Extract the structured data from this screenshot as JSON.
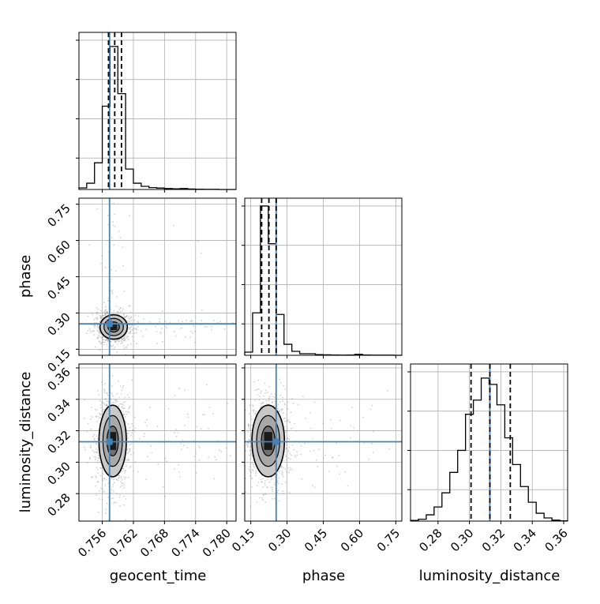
{
  "colors": {
    "truth": "#4682b4",
    "hist": "#000000",
    "grid": "#b0b0b0",
    "scatter": "#9a9a9a",
    "contour_dark": "#1a1a1a",
    "contour_mid": "#707070",
    "contour_light": "#c8c8c8"
  },
  "chart_data": {
    "type": "corner",
    "grid": true,
    "parameters": [
      {
        "name": "geocent_time",
        "label": "geocent_time",
        "range": [
          0.7515,
          0.7818
        ],
        "ticks": [
          0.756,
          0.762,
          0.768,
          0.774,
          0.78
        ],
        "tick_labels": [
          "0.756",
          "0.762",
          "0.768",
          "0.774",
          "0.780"
        ],
        "truth": 0.7574,
        "quantiles": [
          0.7572,
          0.7584,
          0.7597
        ],
        "hist_y_ticks": [
          0.2,
          0.45,
          0.7,
          0.95
        ],
        "histogram": {
          "bin_edges": [
            0.7515,
            0.753,
            0.7545,
            0.756,
            0.7575,
            0.759,
            0.7605,
            0.762,
            0.7635,
            0.765,
            0.7665,
            0.768,
            0.7695,
            0.771,
            0.7725,
            0.774,
            0.7755,
            0.777,
            0.7785,
            0.78,
            0.7818
          ],
          "counts": [
            0.01,
            0.04,
            0.17,
            0.53,
            0.91,
            0.61,
            0.13,
            0.04,
            0.02,
            0.012,
            0.009,
            0.006,
            0.004,
            0.006,
            0.003,
            0.002,
            0.001,
            0.001,
            0.0,
            0.0
          ]
        }
      },
      {
        "name": "phase",
        "label": "phase",
        "range": [
          0.125,
          0.775
        ],
        "ticks": [
          0.15,
          0.3,
          0.45,
          0.6,
          0.75
        ],
        "tick_labels": [
          "0.15",
          "0.30",
          "0.45",
          "0.60",
          "0.75"
        ],
        "truth": 0.255,
        "quantiles": [
          0.195,
          0.225,
          0.255
        ],
        "hist_y_ticks": [
          0.2,
          0.45,
          0.7,
          0.95
        ],
        "histogram": {
          "bin_edges": [
            0.125,
            0.1575,
            0.19,
            0.2225,
            0.255,
            0.2875,
            0.32,
            0.3525,
            0.385,
            0.4175,
            0.45,
            0.4825,
            0.515,
            0.5475,
            0.58,
            0.6125,
            0.645,
            0.6775,
            0.71,
            0.7425,
            0.775
          ],
          "counts": [
            0.02,
            0.27,
            0.95,
            0.71,
            0.26,
            0.07,
            0.025,
            0.01,
            0.01,
            0.004,
            0.003,
            0.002,
            0.001,
            0.002,
            0.006,
            0.002,
            0.001,
            0.001,
            0.001,
            0.0
          ]
        }
      },
      {
        "name": "luminosity_distance",
        "label": "luminosity_distance",
        "range": [
          0.2625,
          0.3625
        ],
        "ticks": [
          0.28,
          0.3,
          0.32,
          0.34,
          0.36
        ],
        "tick_labels": [
          "0.28",
          "0.30",
          "0.32",
          "0.34",
          "0.36"
        ],
        "truth": 0.313,
        "quantiles": [
          0.301,
          0.313,
          0.326
        ],
        "hist_y_ticks": [
          0.2,
          0.45,
          0.7,
          0.95
        ],
        "histogram": {
          "bin_edges": [
            0.2625,
            0.2675,
            0.2725,
            0.2775,
            0.2825,
            0.2875,
            0.2925,
            0.2975,
            0.3025,
            0.3075,
            0.3125,
            0.3175,
            0.3225,
            0.3275,
            0.3325,
            0.3375,
            0.3425,
            0.3475,
            0.3525,
            0.3575,
            0.3625
          ],
          "counts": [
            0.004,
            0.012,
            0.04,
            0.09,
            0.18,
            0.31,
            0.45,
            0.68,
            0.77,
            0.91,
            0.87,
            0.74,
            0.53,
            0.36,
            0.22,
            0.12,
            0.05,
            0.02,
            0.006,
            0.002
          ]
        }
      }
    ],
    "pairs": [
      {
        "x_param": "geocent_time",
        "y_param": "phase",
        "center": [
          0.7582,
          0.242
        ],
        "spread": [
          0.0011,
          0.021
        ]
      },
      {
        "x_param": "geocent_time",
        "y_param": "luminosity_distance",
        "center": [
          0.758,
          0.3135
        ],
        "spread": [
          0.0011,
          0.0095
        ]
      },
      {
        "x_param": "phase",
        "y_param": "luminosity_distance",
        "center": [
          0.222,
          0.3135
        ],
        "spread": [
          0.028,
          0.0095
        ]
      }
    ]
  }
}
